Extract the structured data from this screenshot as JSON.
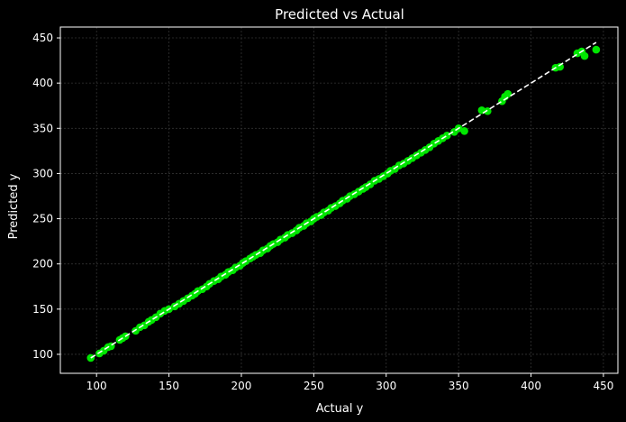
{
  "chart_data": {
    "type": "scatter",
    "title": "Predicted vs Actual",
    "xlabel": "Actual y",
    "ylabel": "Predicted y",
    "xlim": [
      75,
      460
    ],
    "ylim": [
      79,
      462
    ],
    "xticks": [
      100,
      150,
      200,
      250,
      300,
      350,
      400,
      450
    ],
    "yticks": [
      100,
      150,
      200,
      250,
      300,
      350,
      400,
      450
    ],
    "grid": true,
    "point_color": "#00e600",
    "reference_line": {
      "style": "dashed",
      "color": "#ffffff",
      "from": [
        96,
        96
      ],
      "to": [
        445,
        445
      ]
    },
    "points": [
      [
        96,
        96
      ],
      [
        102,
        101
      ],
      [
        105,
        104
      ],
      [
        108,
        108
      ],
      [
        110,
        109
      ],
      [
        116,
        116
      ],
      [
        118,
        118
      ],
      [
        120,
        120
      ],
      [
        127,
        126
      ],
      [
        130,
        130
      ],
      [
        133,
        132
      ],
      [
        136,
        136
      ],
      [
        138,
        138
      ],
      [
        141,
        141
      ],
      [
        144,
        145
      ],
      [
        147,
        148
      ],
      [
        150,
        150
      ],
      [
        154,
        153
      ],
      [
        157,
        156
      ],
      [
        160,
        159
      ],
      [
        163,
        162
      ],
      [
        166,
        165
      ],
      [
        168,
        167
      ],
      [
        170,
        170
      ],
      [
        173,
        172
      ],
      [
        176,
        175
      ],
      [
        178,
        178
      ],
      [
        181,
        181
      ],
      [
        184,
        183
      ],
      [
        186,
        186
      ],
      [
        189,
        188
      ],
      [
        191,
        191
      ],
      [
        194,
        193
      ],
      [
        196,
        196
      ],
      [
        199,
        198
      ],
      [
        201,
        201
      ],
      [
        203,
        203
      ],
      [
        206,
        206
      ],
      [
        208,
        208
      ],
      [
        210,
        210
      ],
      [
        213,
        212
      ],
      [
        215,
        215
      ],
      [
        218,
        217
      ],
      [
        220,
        220
      ],
      [
        222,
        222
      ],
      [
        225,
        224
      ],
      [
        227,
        227
      ],
      [
        230,
        229
      ],
      [
        232,
        232
      ],
      [
        235,
        234
      ],
      [
        238,
        237
      ],
      [
        240,
        240
      ],
      [
        243,
        242
      ],
      [
        245,
        245
      ],
      [
        248,
        247
      ],
      [
        250,
        250
      ],
      [
        252,
        252
      ],
      [
        255,
        254
      ],
      [
        257,
        257
      ],
      [
        260,
        259
      ],
      [
        262,
        262
      ],
      [
        265,
        264
      ],
      [
        268,
        267
      ],
      [
        270,
        270
      ],
      [
        273,
        272
      ],
      [
        275,
        275
      ],
      [
        278,
        277
      ],
      [
        281,
        280
      ],
      [
        284,
        283
      ],
      [
        286,
        285
      ],
      [
        289,
        288
      ],
      [
        292,
        292
      ],
      [
        295,
        294
      ],
      [
        298,
        297
      ],
      [
        301,
        300
      ],
      [
        303,
        303
      ],
      [
        306,
        305
      ],
      [
        309,
        309
      ],
      [
        312,
        311
      ],
      [
        315,
        314
      ],
      [
        318,
        317
      ],
      [
        321,
        320
      ],
      [
        324,
        323
      ],
      [
        327,
        326
      ],
      [
        330,
        329
      ],
      [
        333,
        333
      ],
      [
        336,
        336
      ],
      [
        339,
        339
      ],
      [
        342,
        342
      ],
      [
        347,
        346
      ],
      [
        350,
        350
      ],
      [
        354,
        347
      ],
      [
        366,
        370
      ],
      [
        370,
        369
      ],
      [
        380,
        380
      ],
      [
        382,
        385
      ],
      [
        384,
        388
      ],
      [
        417,
        417
      ],
      [
        420,
        418
      ],
      [
        432,
        433
      ],
      [
        435,
        435
      ],
      [
        437,
        430
      ],
      [
        445,
        437
      ]
    ]
  }
}
